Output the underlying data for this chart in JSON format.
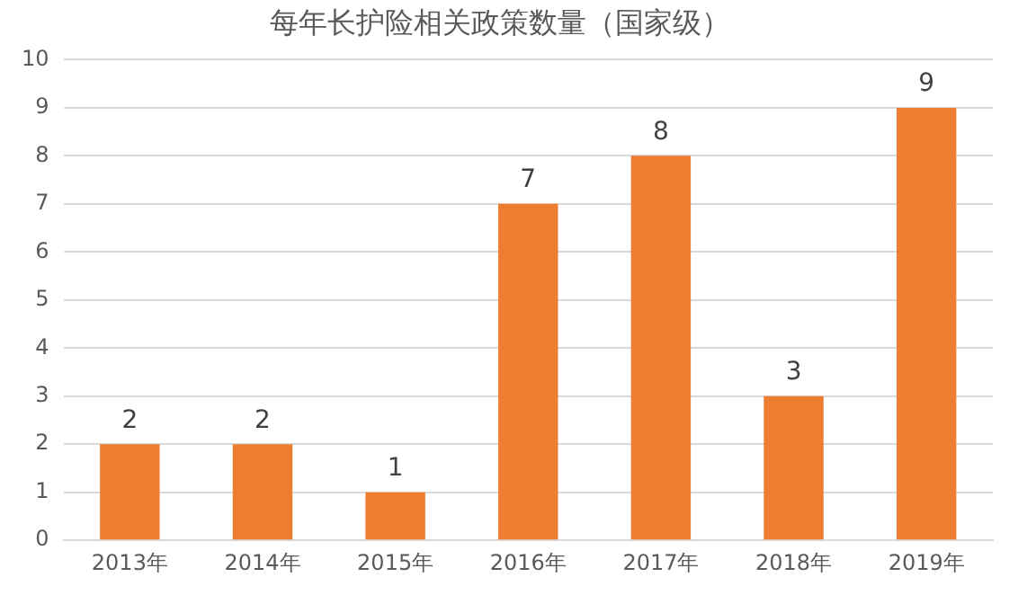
{
  "chart_data": {
    "type": "bar",
    "title": "每年长护险相关政策数量（国家级）",
    "categories": [
      "2013年",
      "2014年",
      "2015年",
      "2016年",
      "2017年",
      "2018年",
      "2019年"
    ],
    "values": [
      2,
      2,
      1,
      7,
      8,
      3,
      9
    ],
    "color": "#ed7d31",
    "ylim": [
      0,
      10
    ],
    "yticks": [
      0,
      1,
      2,
      3,
      4,
      5,
      6,
      7,
      8,
      9,
      10
    ],
    "grid": "y",
    "data_labels": true
  }
}
